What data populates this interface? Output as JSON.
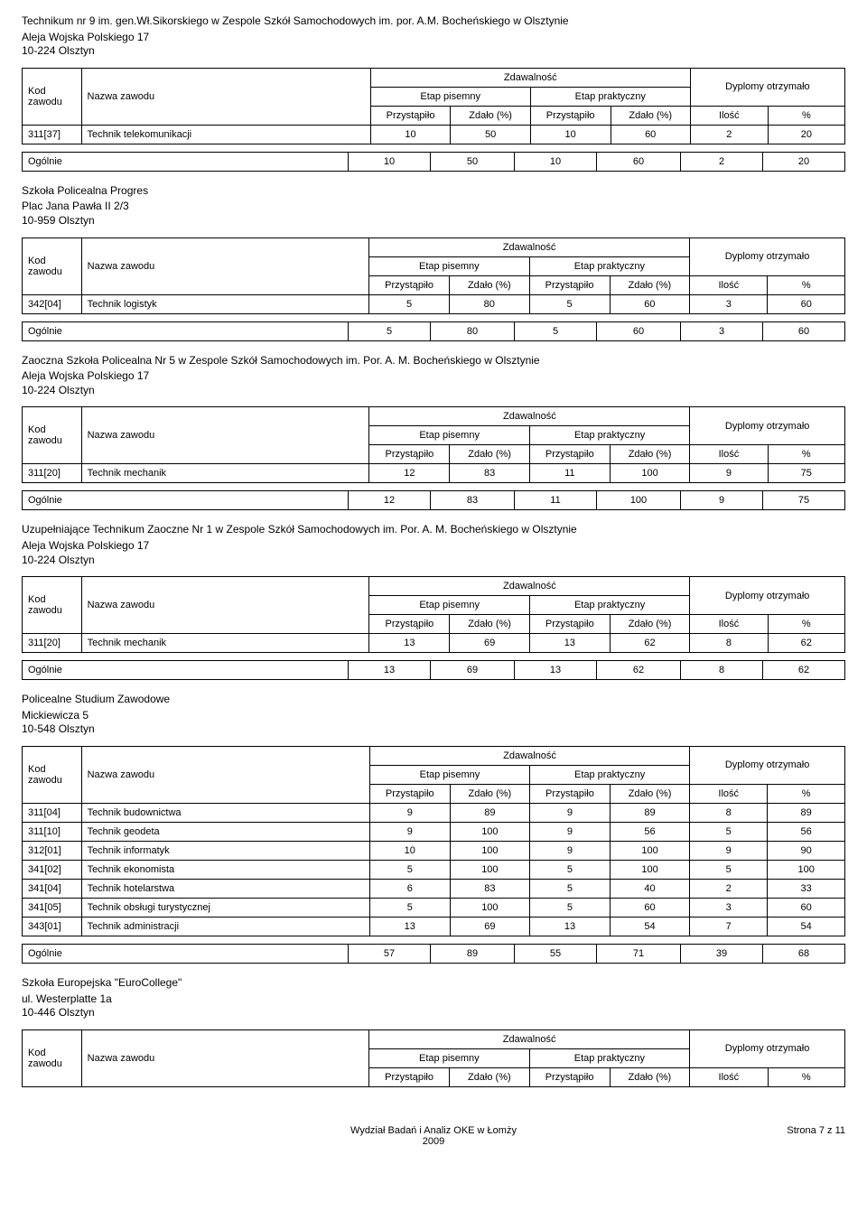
{
  "headers": {
    "kod": "Kod zawodu",
    "nazwa": "Nazwa zawodu",
    "zdawalnosc": "Zdawalność",
    "dyplomy": "Dyplomy otrzymało",
    "etap_pisemny": "Etap pisemny",
    "etap_praktyczny": "Etap praktyczny",
    "przystapilo": "Przystąpiło",
    "zdalo": "Zdało (%)",
    "ilosc": "Ilość",
    "procent": "%",
    "ogolnie": "Ogólnie"
  },
  "schools": [
    {
      "title": "Technikum nr 9 im. gen.Wł.Sikorskiego w Zespole Szkół Samochodowych im. por. A.M. Bocheńskiego w Olsztynie",
      "addr1": "Aleja Wojska Polskiego 17",
      "addr2": "10-224 Olsztyn",
      "rows": [
        {
          "kod": "311[37]",
          "nazwa": "Technik telekomunikacji",
          "p1": "10",
          "z1": "50",
          "p2": "10",
          "z2": "60",
          "il": "2",
          "pr": "20"
        }
      ],
      "summary": {
        "p1": "10",
        "z1": "50",
        "p2": "10",
        "z2": "60",
        "il": "2",
        "pr": "20"
      }
    },
    {
      "title": "Szkoła Policealna Progres",
      "addr1": "Plac Jana Pawła II 2/3",
      "addr2": "10-959 Olsztyn",
      "rows": [
        {
          "kod": "342[04]",
          "nazwa": "Technik logistyk",
          "p1": "5",
          "z1": "80",
          "p2": "5",
          "z2": "60",
          "il": "3",
          "pr": "60"
        }
      ],
      "summary": {
        "p1": "5",
        "z1": "80",
        "p2": "5",
        "z2": "60",
        "il": "3",
        "pr": "60"
      }
    },
    {
      "title": "Zaoczna Szkoła Policealna Nr 5 w Zespole Szkół Samochodowych im. Por. A. M. Bocheńskiego w Olsztynie",
      "addr1": "Aleja Wojska Polskiego 17",
      "addr2": "10-224 Olsztyn",
      "rows": [
        {
          "kod": "311[20]",
          "nazwa": "Technik mechanik",
          "p1": "12",
          "z1": "83",
          "p2": "11",
          "z2": "100",
          "il": "9",
          "pr": "75"
        }
      ],
      "summary": {
        "p1": "12",
        "z1": "83",
        "p2": "11",
        "z2": "100",
        "il": "9",
        "pr": "75"
      }
    },
    {
      "title": "Uzupełniające Technikum Zaoczne Nr 1 w  Zespole Szkół Samochodowych im. Por. A. M. Bocheńskiego w Olsztynie",
      "addr1": "Aleja Wojska Polskiego 17",
      "addr2": "10-224 Olsztyn",
      "rows": [
        {
          "kod": "311[20]",
          "nazwa": "Technik mechanik",
          "p1": "13",
          "z1": "69",
          "p2": "13",
          "z2": "62",
          "il": "8",
          "pr": "62"
        }
      ],
      "summary": {
        "p1": "13",
        "z1": "69",
        "p2": "13",
        "z2": "62",
        "il": "8",
        "pr": "62"
      }
    },
    {
      "title": "Policealne Studium Zawodowe",
      "addr1": "Mickiewicza 5",
      "addr2": "10-548 Olsztyn",
      "rows": [
        {
          "kod": "311[04]",
          "nazwa": "Technik budownictwa",
          "p1": "9",
          "z1": "89",
          "p2": "9",
          "z2": "89",
          "il": "8",
          "pr": "89"
        },
        {
          "kod": "311[10]",
          "nazwa": "Technik geodeta",
          "p1": "9",
          "z1": "100",
          "p2": "9",
          "z2": "56",
          "il": "5",
          "pr": "56"
        },
        {
          "kod": "312[01]",
          "nazwa": "Technik informatyk",
          "p1": "10",
          "z1": "100",
          "p2": "9",
          "z2": "100",
          "il": "9",
          "pr": "90"
        },
        {
          "kod": "341[02]",
          "nazwa": "Technik ekonomista",
          "p1": "5",
          "z1": "100",
          "p2": "5",
          "z2": "100",
          "il": "5",
          "pr": "100"
        },
        {
          "kod": "341[04]",
          "nazwa": "Technik hotelarstwa",
          "p1": "6",
          "z1": "83",
          "p2": "5",
          "z2": "40",
          "il": "2",
          "pr": "33"
        },
        {
          "kod": "341[05]",
          "nazwa": "Technik obsługi turystycznej",
          "p1": "5",
          "z1": "100",
          "p2": "5",
          "z2": "60",
          "il": "3",
          "pr": "60"
        },
        {
          "kod": "343[01]",
          "nazwa": "Technik administracji",
          "p1": "13",
          "z1": "69",
          "p2": "13",
          "z2": "54",
          "il": "7",
          "pr": "54"
        }
      ],
      "summary": {
        "p1": "57",
        "z1": "89",
        "p2": "55",
        "z2": "71",
        "il": "39",
        "pr": "68"
      }
    },
    {
      "title": "Szkoła Europejska \"EuroCollege\"",
      "addr1": "ul. Westerplatte 1a",
      "addr2": "10-446 Olsztyn",
      "headerOnly": true
    }
  ],
  "footer": {
    "center1": "Wydział Badań i Analiz OKE w Łomży",
    "center2": "2009",
    "right": "Strona 7 z 11"
  }
}
